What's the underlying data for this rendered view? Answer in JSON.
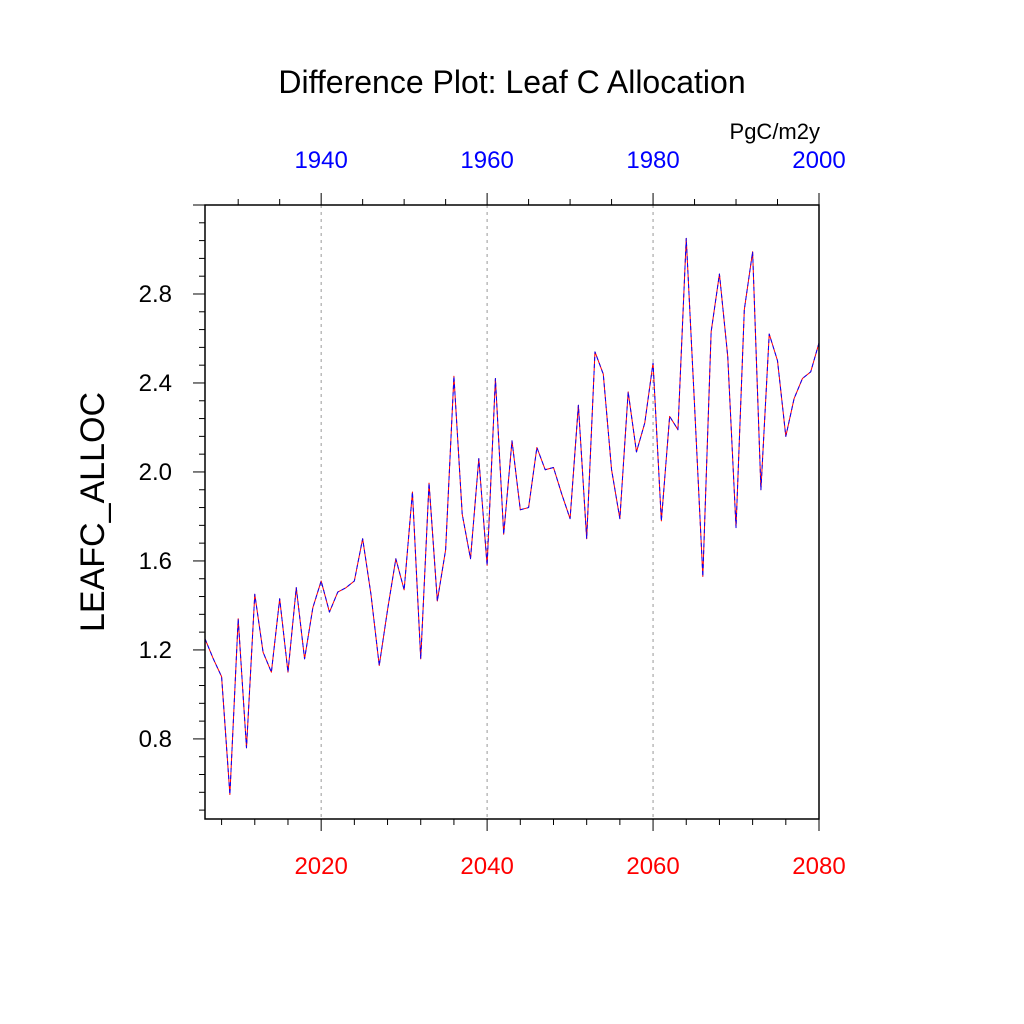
{
  "chart_data": {
    "type": "line",
    "title": "Difference Plot: Leaf C Allocation",
    "units": "PgC/m2y",
    "ylabel": "LEAFC_ALLOC",
    "xlabel": "",
    "ylim": [
      0.44,
      3.2
    ],
    "bottom_axis": {
      "range": [
        2006,
        2080
      ],
      "ticks": [
        "2020",
        "2040",
        "2060",
        "2080"
      ],
      "tick_values": [
        2020,
        2040,
        2060,
        2080
      ],
      "color": "#ff0000"
    },
    "top_axis": {
      "range": [
        1926,
        2000
      ],
      "ticks": [
        "1940",
        "1960",
        "1980",
        "2000"
      ],
      "tick_values": [
        1940,
        1960,
        1980,
        2000
      ],
      "color": "#0000ff"
    },
    "y_ticks": [
      "0.8",
      "1.2",
      "1.6",
      "2.0",
      "2.4",
      "2.8"
    ],
    "y_tick_values": [
      0.8,
      1.2,
      1.6,
      2.0,
      2.4,
      2.8
    ],
    "vertical_reference_lines": [
      2020,
      2040,
      2060
    ],
    "grid": false,
    "series": [
      {
        "color": "#ff0000",
        "style": "solid",
        "x": [
          2006,
          2007,
          2008,
          2009,
          2010,
          2011,
          2012,
          2013,
          2014,
          2015,
          2016,
          2017,
          2018,
          2019,
          2020,
          2021,
          2022,
          2023,
          2024,
          2025,
          2026,
          2027,
          2028,
          2029,
          2030,
          2031,
          2032,
          2033,
          2034,
          2035,
          2036,
          2037,
          2038,
          2039,
          2040,
          2041,
          2042,
          2043,
          2044,
          2045,
          2046,
          2047,
          2048,
          2049,
          2050,
          2051,
          2052,
          2053,
          2054,
          2055,
          2056,
          2057,
          2058,
          2059,
          2060,
          2061,
          2062,
          2063,
          2064,
          2065,
          2066,
          2067,
          2068,
          2069,
          2070,
          2071,
          2072,
          2073,
          2074,
          2075,
          2076,
          2077,
          2078,
          2079,
          2080
        ],
        "y": [
          1.25,
          1.16,
          1.08,
          0.55,
          1.34,
          0.76,
          1.45,
          1.19,
          1.1,
          1.43,
          1.1,
          1.48,
          1.16,
          1.39,
          1.51,
          1.37,
          1.46,
          1.48,
          1.51,
          1.7,
          1.45,
          1.13,
          1.38,
          1.61,
          1.47,
          1.91,
          1.16,
          1.95,
          1.42,
          1.65,
          2.43,
          1.81,
          1.61,
          2.06,
          1.58,
          2.42,
          1.72,
          2.14,
          1.83,
          1.84,
          2.11,
          2.01,
          2.02,
          1.9,
          1.79,
          2.3,
          1.7,
          2.54,
          2.44,
          2.01,
          1.79,
          2.36,
          2.09,
          2.22,
          2.49,
          1.78,
          2.25,
          2.19,
          3.05,
          2.3,
          1.53,
          2.63,
          2.89,
          2.52,
          1.75,
          2.73,
          2.99,
          1.92,
          2.62,
          2.5,
          2.16,
          2.33,
          2.42,
          2.45,
          2.58
        ]
      },
      {
        "color": "#0000ff",
        "style": "dashed",
        "x": [
          2006,
          2007,
          2008,
          2009,
          2010,
          2011,
          2012,
          2013,
          2014,
          2015,
          2016,
          2017,
          2018,
          2019,
          2020,
          2021,
          2022,
          2023,
          2024,
          2025,
          2026,
          2027,
          2028,
          2029,
          2030,
          2031,
          2032,
          2033,
          2034,
          2035,
          2036,
          2037,
          2038,
          2039,
          2040,
          2041,
          2042,
          2043,
          2044,
          2045,
          2046,
          2047,
          2048,
          2049,
          2050,
          2051,
          2052,
          2053,
          2054,
          2055,
          2056,
          2057,
          2058,
          2059,
          2060,
          2061,
          2062,
          2063,
          2064,
          2065,
          2066,
          2067,
          2068,
          2069,
          2070,
          2071,
          2072,
          2073,
          2074,
          2075,
          2076,
          2077,
          2078,
          2079,
          2080
        ],
        "y": [
          1.25,
          1.16,
          1.08,
          0.55,
          1.34,
          0.76,
          1.45,
          1.19,
          1.1,
          1.43,
          1.1,
          1.48,
          1.16,
          1.39,
          1.51,
          1.37,
          1.46,
          1.48,
          1.51,
          1.7,
          1.45,
          1.13,
          1.38,
          1.61,
          1.47,
          1.91,
          1.16,
          1.95,
          1.42,
          1.65,
          2.43,
          1.81,
          1.61,
          2.06,
          1.58,
          2.42,
          1.72,
          2.14,
          1.83,
          1.84,
          2.11,
          2.01,
          2.02,
          1.9,
          1.79,
          2.3,
          1.7,
          2.54,
          2.44,
          2.01,
          1.79,
          2.36,
          2.09,
          2.22,
          2.49,
          1.78,
          2.25,
          2.19,
          3.05,
          2.3,
          1.53,
          2.63,
          2.89,
          2.52,
          1.75,
          2.73,
          2.99,
          1.92,
          2.62,
          2.5,
          2.16,
          2.33,
          2.42,
          2.45,
          2.58
        ]
      }
    ]
  }
}
